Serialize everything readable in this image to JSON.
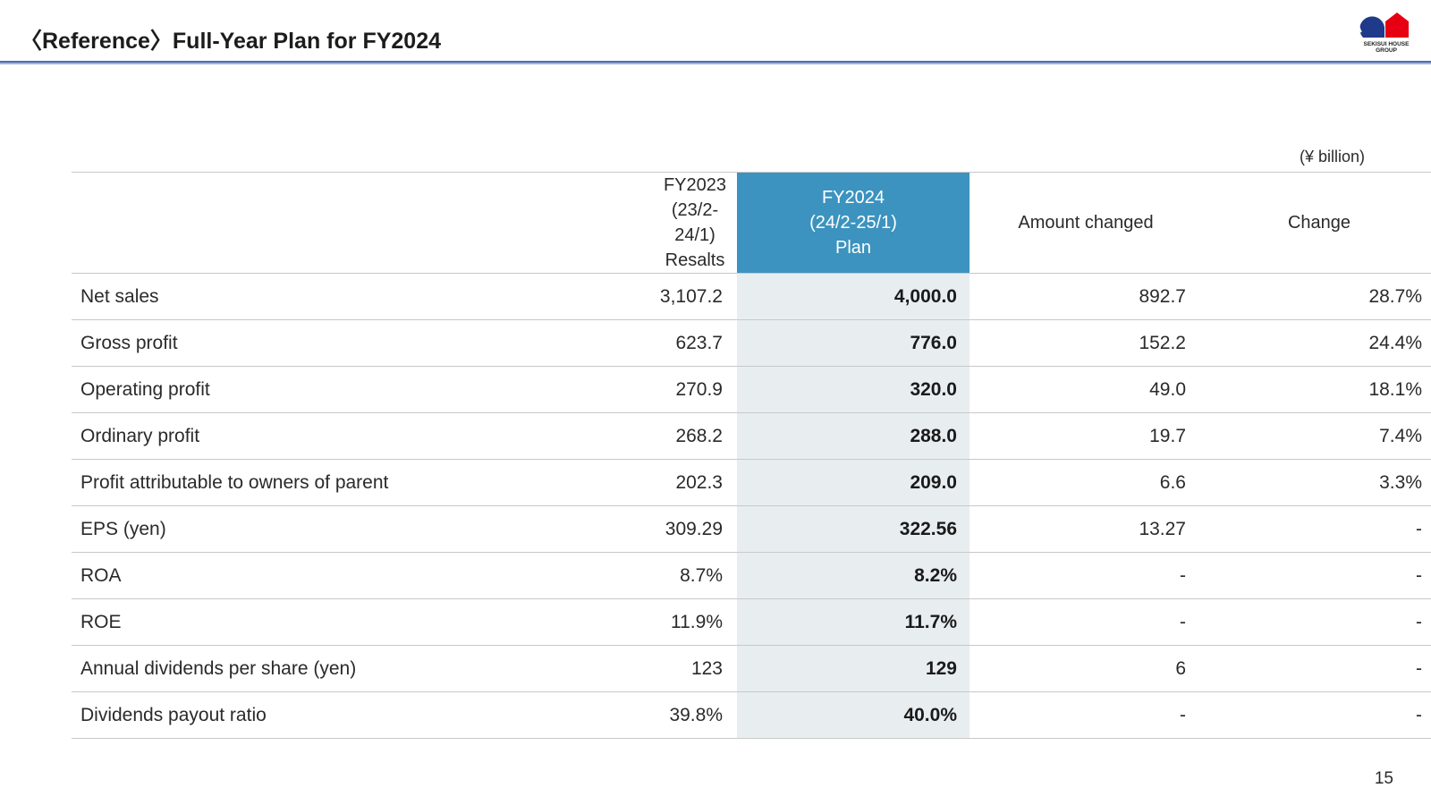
{
  "header": {
    "title": "〈Reference〉Full-Year Plan for FY2024",
    "logo_text_line1": "SEKISUI HOUSE",
    "logo_text_line2": "GROUP"
  },
  "unit_note": "(¥ billion)",
  "table": {
    "columns": [
      {
        "line1": "",
        "line2": "",
        "line3": ""
      },
      {
        "line1": "FY2023",
        "line2": "(23/2-24/1)",
        "line3": "Resalts"
      },
      {
        "line1": "FY2024",
        "line2": "(24/2-25/1)",
        "line3": "Plan"
      },
      {
        "line1": "Amount changed",
        "line2": "",
        "line3": ""
      },
      {
        "line1": "Change",
        "line2": "",
        "line3": ""
      }
    ],
    "rows": [
      {
        "label": "Net sales",
        "fy2023": "3,107.2",
        "fy2024": "4,000.0",
        "amount_changed": "892.7",
        "change": "28.7%"
      },
      {
        "label": "Gross profit",
        "fy2023": "623.7",
        "fy2024": "776.0",
        "amount_changed": "152.2",
        "change": "24.4%"
      },
      {
        "label": "Operating profit",
        "fy2023": "270.9",
        "fy2024": "320.0",
        "amount_changed": "49.0",
        "change": "18.1%"
      },
      {
        "label": "Ordinary profit",
        "fy2023": "268.2",
        "fy2024": "288.0",
        "amount_changed": "19.7",
        "change": "7.4%"
      },
      {
        "label": "Profit attributable to owners of parent",
        "fy2023": "202.3",
        "fy2024": "209.0",
        "amount_changed": "6.6",
        "change": "3.3%"
      },
      {
        "label": "EPS (yen)",
        "fy2023": "309.29",
        "fy2024": "322.56",
        "amount_changed": "13.27",
        "change": "-"
      },
      {
        "label": "ROA",
        "fy2023": "8.7%",
        "fy2024": "8.2%",
        "amount_changed": "-",
        "change": "-"
      },
      {
        "label": "ROE",
        "fy2023": "11.9%",
        "fy2024": "11.7%",
        "amount_changed": "-",
        "change": "-"
      },
      {
        "label": "Annual dividends per share (yen)",
        "fy2023": "123",
        "fy2024": "129",
        "amount_changed": "6",
        "change": "-"
      },
      {
        "label": "Dividends payout ratio",
        "fy2023": "39.8%",
        "fy2024": "40.0%",
        "amount_changed": "-",
        "change": "-"
      }
    ]
  },
  "page_number": "15",
  "colors": {
    "highlight_header": "#3c93bf",
    "highlight_column": "#e8eef0",
    "title_rule": "#4a6fb0",
    "logo_blue": "#1f3a8a",
    "logo_red": "#e60012"
  }
}
